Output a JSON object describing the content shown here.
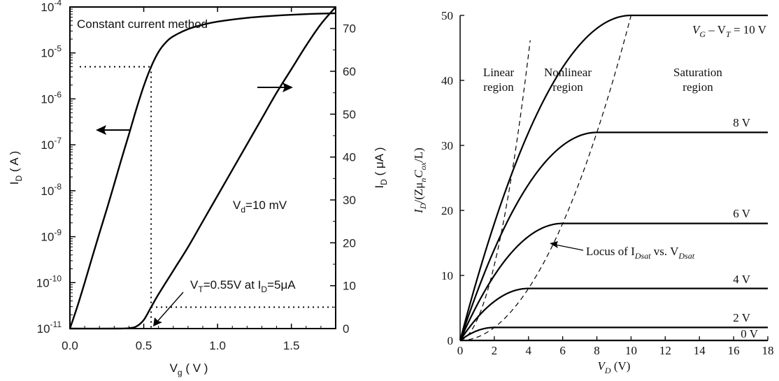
{
  "chart_data": [
    {
      "type": "line",
      "title": "",
      "x_axis": {
        "label": "V",
        "label_sub": "g",
        "label_unit": " ( V )",
        "range": [
          0,
          1.8
        ],
        "ticks": [
          "0.0",
          "0.5",
          "1.0",
          "1.5"
        ],
        "tick_values": [
          0,
          0.5,
          1.0,
          1.5
        ]
      },
      "y_axis_left": {
        "label": "I",
        "label_sub": "D",
        "label_unit": " ( A )",
        "scale": "log",
        "range": [
          1e-11,
          0.0001
        ],
        "tick_labels": [
          {
            "base": "10",
            "exp": "-4"
          },
          {
            "base": "10",
            "exp": "-5"
          },
          {
            "base": "10",
            "exp": "-6"
          },
          {
            "base": "10",
            "exp": "-7"
          },
          {
            "base": "10",
            "exp": "-8"
          },
          {
            "base": "10",
            "exp": "-9"
          },
          {
            "base": "10",
            "exp": "-10"
          },
          {
            "base": "10",
            "exp": "-11"
          }
        ]
      },
      "y_axis_right": {
        "label": "I",
        "label_sub": "D",
        "label_unit": " ( μA )",
        "range": [
          0,
          75
        ],
        "ticks": [
          "0",
          "10",
          "20",
          "30",
          "40",
          "50",
          "60",
          "70"
        ],
        "tick_values": [
          0,
          10,
          20,
          30,
          40,
          50,
          60,
          70
        ]
      },
      "series": [
        {
          "axis": "left",
          "x": [
            0.0,
            0.05,
            0.1,
            0.15,
            0.2,
            0.25,
            0.3,
            0.35,
            0.4,
            0.45,
            0.5,
            0.55,
            0.6,
            0.65,
            0.7,
            0.8,
            0.9,
            1.0,
            1.2,
            1.4,
            1.6,
            1.8
          ],
          "y": [
            1e-11,
            3e-11,
            1e-10,
            3.5e-10,
            1.2e-09,
            4e-09,
            1.4e-08,
            5e-08,
            1.7e-07,
            6e-07,
            1.9e-06,
            5e-06,
            1.05e-05,
            1.7e-05,
            2.3e-05,
            3.3e-05,
            4.1e-05,
            4.8e-05,
            5.8e-05,
            6.5e-05,
            7e-05,
            7.3e-05
          ]
        },
        {
          "axis": "right",
          "x": [
            0.0,
            0.3,
            0.4,
            0.45,
            0.5,
            0.55,
            0.6,
            0.7,
            0.8,
            0.9,
            1.0,
            1.1,
            1.2,
            1.3,
            1.4,
            1.5,
            1.6,
            1.7,
            1.8
          ],
          "y": [
            0,
            0,
            0.1,
            0.5,
            2,
            5,
            8,
            13.5,
            19,
            25,
            31,
            37,
            43,
            49,
            55,
            60.5,
            66,
            71,
            76
          ]
        }
      ],
      "reference_lines": {
        "x": 0.55,
        "left_y": 5e-06,
        "right_y": 5
      },
      "annotations": {
        "method": "Constant current method",
        "vd_prefix": "V",
        "vd_sub": "d",
        "vd_rest": "=10 mV",
        "vt_prefix": "V",
        "vt_sub": "T",
        "vt_mid": "=0.55V at I",
        "vt_sub2": "D",
        "vt_rest": "=5μA"
      }
    },
    {
      "type": "line",
      "title": "",
      "x_axis": {
        "label": "V",
        "label_sub": "D",
        "label_unit": " (V)",
        "range": [
          0,
          18
        ],
        "ticks": [
          "0",
          "2",
          "4",
          "6",
          "8",
          "10",
          "12",
          "14",
          "16",
          "18"
        ],
        "tick_values": [
          0,
          2,
          4,
          6,
          8,
          10,
          12,
          14,
          16,
          18
        ]
      },
      "y_axis": {
        "label_parts": [
          "I",
          "D",
          "/(Zμ",
          "n",
          "C",
          "ox",
          "/L)"
        ],
        "range": [
          0,
          50
        ],
        "ticks": [
          "0",
          "10",
          "20",
          "30",
          "40",
          "50"
        ],
        "tick_values": [
          0,
          10,
          20,
          30,
          40,
          50
        ]
      },
      "series": [
        {
          "name": "V_G − V_T = 10 V",
          "vsat": 10
        },
        {
          "name": "8 V",
          "vsat": 8
        },
        {
          "name": "6 V",
          "vsat": 6
        },
        {
          "name": "4 V",
          "vsat": 4
        },
        {
          "name": "2 V",
          "vsat": 2
        },
        {
          "name": "0 V",
          "vsat": 0
        }
      ],
      "curve_labels": {
        "top_prefix": "V",
        "top_sub1": "G",
        "top_mid": " – V",
        "top_sub2": "T",
        "top_rest": " = 10 V",
        "others": [
          "8 V",
          "6 V",
          "4 V",
          "2 V",
          "0 V"
        ]
      },
      "regions": {
        "linear": [
          "Linear",
          "region"
        ],
        "nonlinear": [
          "Nonlinear",
          "region"
        ],
        "saturation": [
          "Saturation",
          "region"
        ]
      },
      "locus": {
        "text_prefix": "Locus of I",
        "sub1": "Dsat",
        "text_mid": " vs. V",
        "sub2": "Dsat"
      }
    }
  ]
}
